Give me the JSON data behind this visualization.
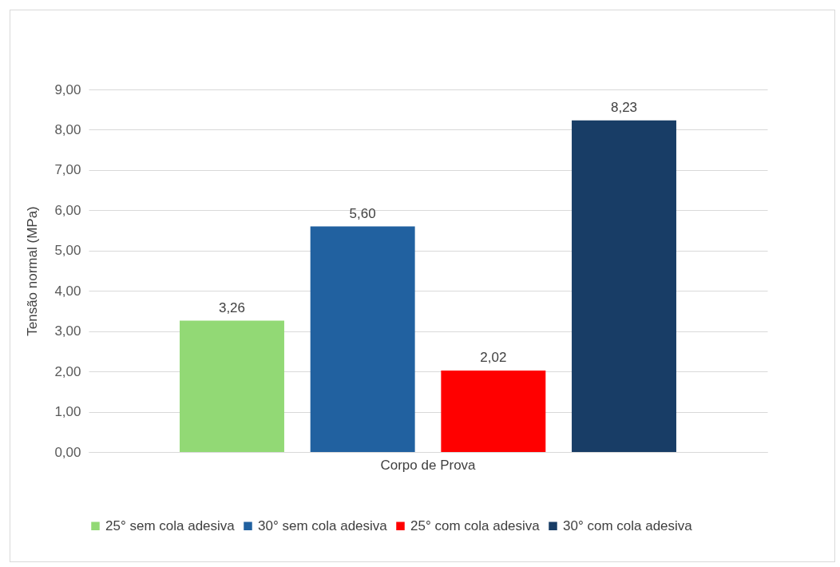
{
  "chart_data": {
    "type": "bar",
    "categories": [
      "Corpo de Prova"
    ],
    "ylabel": "Tensão normal  (MPa)",
    "series": [
      {
        "name": "25° sem cola adesiva",
        "color": "#92d975",
        "values": [
          3.26
        ],
        "value_labels": [
          "3,26"
        ]
      },
      {
        "name": "30° sem cola adesiva",
        "color": "#2161a0",
        "values": [
          5.6
        ],
        "value_labels": [
          "5,60"
        ]
      },
      {
        "name": "25° com cola adesiva",
        "color": "#ff0000",
        "values": [
          2.02
        ],
        "value_labels": [
          "2,02"
        ]
      },
      {
        "name": "30° com cola adesiva",
        "color": "#183d66",
        "values": [
          8.23
        ],
        "value_labels": [
          "8,23"
        ]
      }
    ],
    "ylim": [
      0,
      9
    ],
    "yticks": [
      {
        "value": 0,
        "label": "0,00"
      },
      {
        "value": 1,
        "label": "1,00"
      },
      {
        "value": 2,
        "label": "2,00"
      },
      {
        "value": 3,
        "label": "3,00"
      },
      {
        "value": 4,
        "label": "4,00"
      },
      {
        "value": 5,
        "label": "5,00"
      },
      {
        "value": 6,
        "label": "6,00"
      },
      {
        "value": 7,
        "label": "7,00"
      },
      {
        "value": 8,
        "label": "8,00"
      },
      {
        "value": 9,
        "label": "9,00"
      }
    ],
    "grid": "y",
    "legend": "bottom"
  }
}
